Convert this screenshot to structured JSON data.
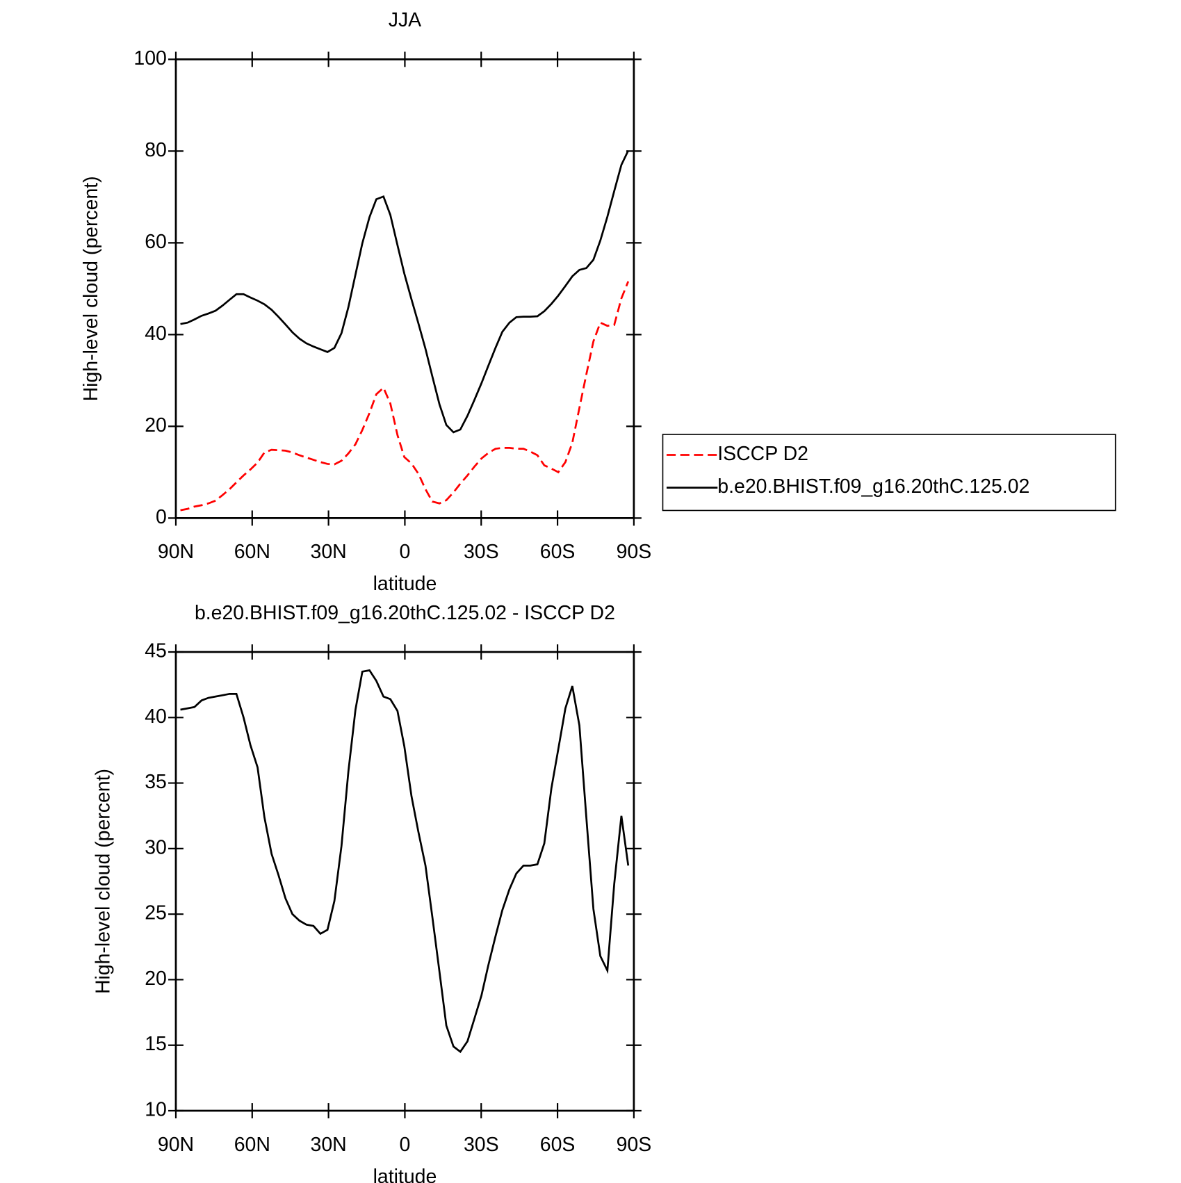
{
  "chart_data": [
    {
      "type": "line",
      "title": "JJA",
      "xlabel": "latitude",
      "ylabel": "High-level cloud (percent)",
      "x": [
        88.2,
        85.4,
        82.7,
        79.9,
        77.2,
        74.4,
        71.7,
        68.9,
        66.2,
        63.4,
        60.7,
        57.9,
        55.2,
        52.4,
        49.7,
        46.9,
        44.2,
        41.4,
        38.7,
        35.9,
        33.2,
        30.4,
        27.7,
        24.9,
        22.2,
        19.4,
        16.7,
        13.9,
        11.2,
        8.4,
        5.7,
        2.9,
        0.2,
        -2.6,
        -5.3,
        -8.1,
        -10.8,
        -13.6,
        -16.3,
        -19.1,
        -21.8,
        -24.6,
        -27.3,
        -30.1,
        -32.8,
        -35.6,
        -38.3,
        -41.1,
        -43.8,
        -46.6,
        -49.3,
        -52.1,
        -54.8,
        -57.6,
        -60.3,
        -63.1,
        -65.8,
        -68.6,
        -71.3,
        -74.1,
        -76.8,
        -79.6,
        -82.3,
        -85.1,
        -87.8
      ],
      "xlim": [
        90,
        -90
      ],
      "xticks": [
        {
          "value": 90,
          "label": "90N"
        },
        {
          "value": 60,
          "label": "60N"
        },
        {
          "value": 30,
          "label": "30N"
        },
        0,
        {
          "value": -30,
          "label": "30S"
        },
        {
          "value": -60,
          "label": "60S"
        },
        {
          "value": -90,
          "label": "90S"
        }
      ],
      "ylim": [
        0,
        100
      ],
      "yticks": [
        0,
        20,
        40,
        60,
        80,
        100
      ],
      "legend": "right",
      "series": [
        {
          "name": "ISCCP D2",
          "color": "#ff0000",
          "linestyle": "dashed",
          "values": [
            1.7,
            2.0,
            2.5,
            2.8,
            3.2,
            3.8,
            5.0,
            6.3,
            7.8,
            9.3,
            10.6,
            12.1,
            14.3,
            14.9,
            14.8,
            14.7,
            14.3,
            13.7,
            13.2,
            12.7,
            12.2,
            11.8,
            11.7,
            12.5,
            14.1,
            16.1,
            19.2,
            22.9,
            27.0,
            28.4,
            25.0,
            18.1,
            13.3,
            11.9,
            9.7,
            6.3,
            3.6,
            3.2,
            3.9,
            5.6,
            7.5,
            9.3,
            11.2,
            13.0,
            14.2,
            15.1,
            15.3,
            15.3,
            15.1,
            15.1,
            14.5,
            13.7,
            11.5,
            10.8,
            10.0,
            12.2,
            16.4,
            24.0,
            31.3,
            38.5,
            42.6,
            41.9,
            42.1,
            47.9,
            51.6
          ]
        },
        {
          "name": "b.e20.BHIST.f09_g16.20thC.125.02",
          "color": "#000000",
          "linestyle": "solid",
          "values": [
            42.3,
            42.6,
            43.3,
            44.1,
            44.6,
            45.2,
            46.3,
            47.6,
            48.8,
            48.8,
            48.1,
            47.4,
            46.6,
            45.4,
            43.9,
            42.2,
            40.5,
            39.1,
            38.1,
            37.4,
            36.8,
            36.2,
            37.1,
            40.3,
            46.0,
            53.1,
            59.9,
            65.6,
            69.5,
            70.1,
            66.1,
            59.5,
            53.3,
            47.7,
            42.5,
            36.9,
            30.9,
            24.8,
            20.3,
            18.7,
            19.3,
            22.3,
            25.7,
            29.4,
            33.2,
            37.1,
            40.6,
            42.6,
            43.8,
            43.9,
            43.9,
            44.0,
            45.1,
            46.7,
            48.5,
            50.6,
            52.7,
            54.1,
            54.5,
            56.3,
            60.5,
            65.7,
            71.3,
            77.0,
            80.1
          ]
        }
      ]
    },
    {
      "type": "line",
      "title": "b.e20.BHIST.f09_g16.20thC.125.02 - ISCCP D2",
      "xlabel": "latitude",
      "ylabel": "High-level cloud (percent)",
      "x": [
        88.2,
        85.4,
        82.7,
        79.9,
        77.2,
        74.4,
        71.7,
        68.9,
        66.2,
        63.4,
        60.7,
        57.9,
        55.2,
        52.4,
        49.7,
        46.9,
        44.2,
        41.4,
        38.7,
        35.9,
        33.2,
        30.4,
        27.7,
        24.9,
        22.2,
        19.4,
        16.7,
        13.9,
        11.2,
        8.4,
        5.7,
        2.9,
        0.2,
        -2.6,
        -5.3,
        -8.1,
        -10.8,
        -13.6,
        -16.3,
        -19.1,
        -21.8,
        -24.6,
        -27.3,
        -30.1,
        -32.8,
        -35.6,
        -38.3,
        -41.1,
        -43.8,
        -46.6,
        -49.3,
        -52.1,
        -54.8,
        -57.6,
        -60.3,
        -63.1,
        -65.8,
        -68.6,
        -71.3,
        -74.1,
        -76.8,
        -79.6,
        -82.3,
        -85.1,
        -87.8
      ],
      "xlim": [
        90,
        -90
      ],
      "xticks": [
        {
          "value": 90,
          "label": "90N"
        },
        {
          "value": 60,
          "label": "60N"
        },
        {
          "value": 30,
          "label": "30N"
        },
        0,
        {
          "value": -30,
          "label": "30S"
        },
        {
          "value": -60,
          "label": "60S"
        },
        {
          "value": -90,
          "label": "90S"
        }
      ],
      "ylim": [
        10,
        45
      ],
      "yticks": [
        10,
        15,
        20,
        25,
        30,
        35,
        40,
        45
      ],
      "series": [
        {
          "color": "#000000",
          "linestyle": "solid",
          "values": [
            40.6,
            40.7,
            40.8,
            41.3,
            41.5,
            41.6,
            41.7,
            41.8,
            41.8,
            40.0,
            37.9,
            36.2,
            32.4,
            29.6,
            28.0,
            26.2,
            25.0,
            24.5,
            24.2,
            24.1,
            23.5,
            23.8,
            26.0,
            30.2,
            35.9,
            40.6,
            43.5,
            43.6,
            42.8,
            41.6,
            41.4,
            40.5,
            37.8,
            34.0,
            31.3,
            28.7,
            24.8,
            20.6,
            16.5,
            14.9,
            14.5,
            15.3,
            17.0,
            18.8,
            21.1,
            23.3,
            25.3,
            26.9,
            28.1,
            28.7,
            28.7,
            28.8,
            30.4,
            34.6,
            37.6,
            40.7,
            42.4,
            39.4,
            32.4,
            25.4,
            21.8,
            20.7,
            27.3,
            32.5,
            28.7
          ]
        }
      ]
    }
  ]
}
